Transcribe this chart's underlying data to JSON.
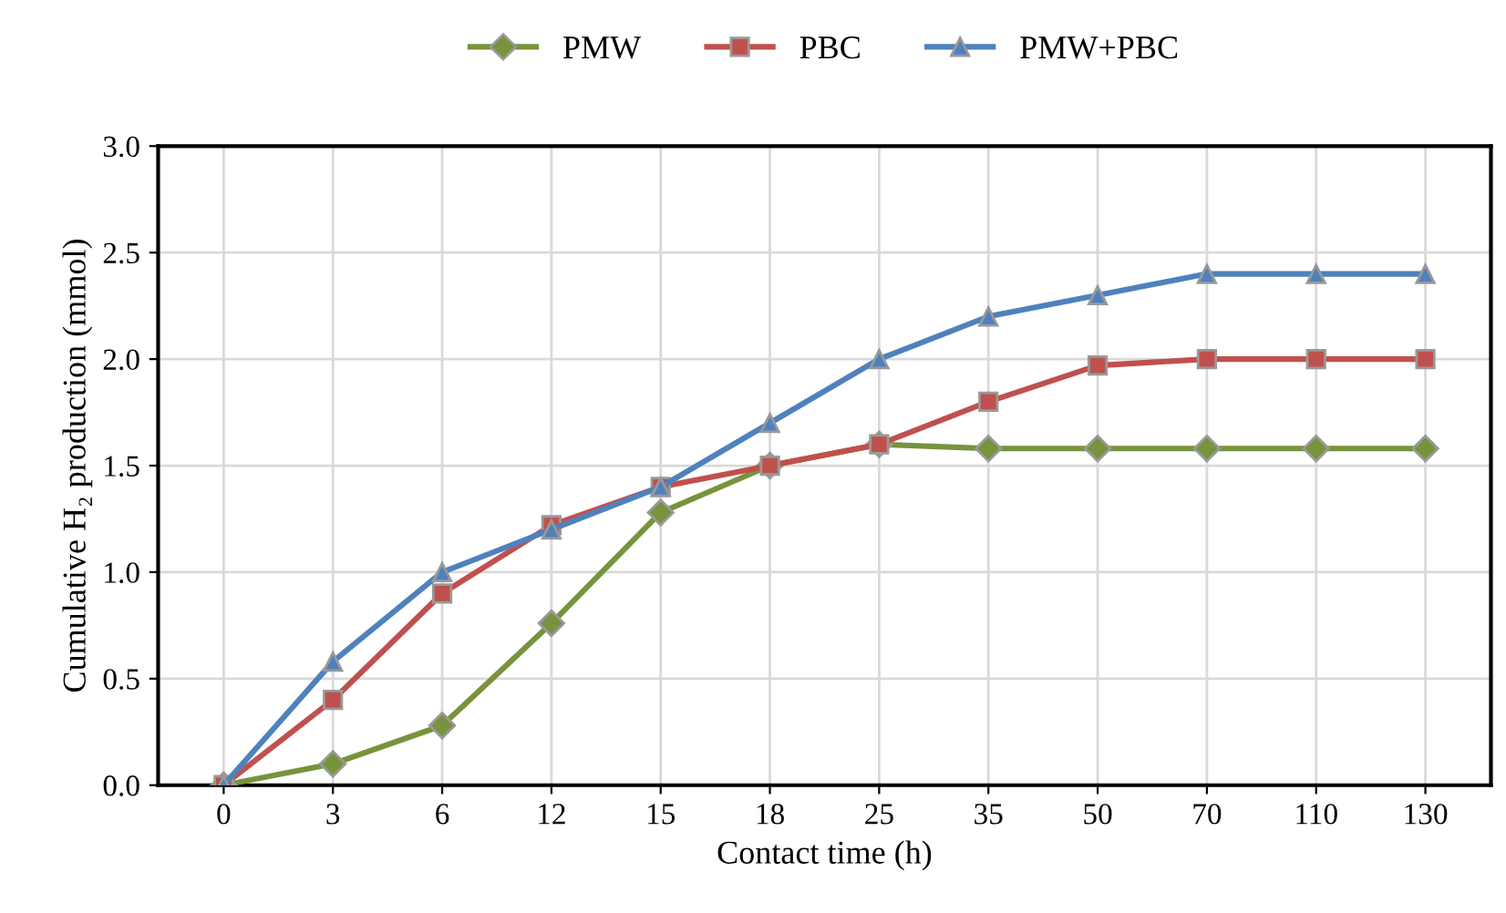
{
  "chart_data": {
    "type": "line",
    "xlabel": "Contact time (h)",
    "ylabel": "Cumulative H₂ production (mmol)",
    "categories": [
      "0",
      "3",
      "6",
      "12",
      "15",
      "18",
      "25",
      "35",
      "50",
      "70",
      "110",
      "130"
    ],
    "series": [
      {
        "name": "PMW",
        "color": "#77933c",
        "marker": "diamond",
        "values": [
          0,
          0.1,
          0.28,
          0.76,
          1.28,
          1.5,
          1.6,
          1.58,
          1.58,
          1.58,
          1.58,
          1.58
        ]
      },
      {
        "name": "PBC",
        "color": "#c0504d",
        "marker": "square",
        "values": [
          0,
          0.4,
          0.9,
          1.22,
          1.4,
          1.5,
          1.6,
          1.8,
          1.97,
          2.0,
          2.0,
          2.0
        ]
      },
      {
        "name": "PMW+PBC",
        "color": "#4f81bd",
        "marker": "triangle",
        "values": [
          0,
          0.58,
          1.0,
          1.2,
          1.4,
          1.7,
          2.0,
          2.2,
          2.3,
          2.4,
          2.4,
          2.4
        ]
      }
    ],
    "ylim": [
      0,
      3.0
    ],
    "yticks": [
      {
        "value": 0,
        "label": "0.0"
      },
      {
        "value": 0.5,
        "label": "0.5"
      },
      {
        "value": 1,
        "label": "1.0"
      },
      {
        "value": 1.5,
        "label": "1.5"
      },
      {
        "value": 2,
        "label": "2.0"
      },
      {
        "value": 2.5,
        "label": "2.5"
      },
      {
        "value": 3,
        "label": "3.0"
      }
    ],
    "grid": true,
    "legend": "top"
  }
}
